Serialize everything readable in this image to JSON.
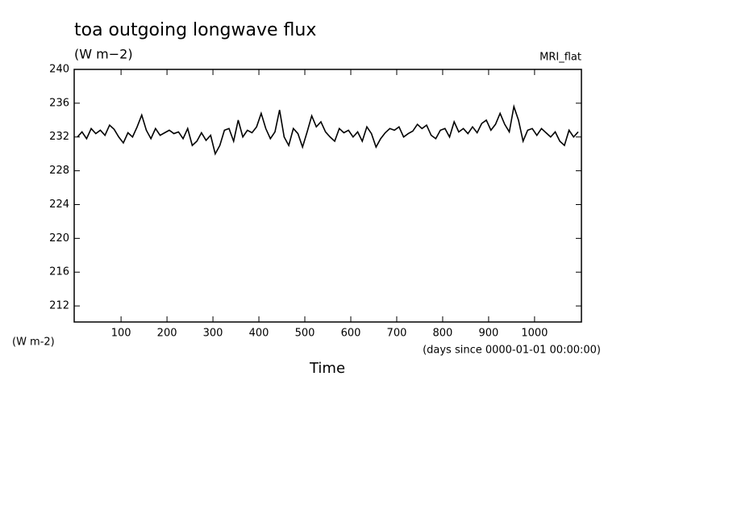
{
  "chart_data": {
    "type": "line",
    "title": "toa outgoing longwave flux",
    "subtitle": "(W m−2)",
    "annotation": "MRI_flat",
    "y_units_label": "(W m-2)",
    "x_units_label": "(days since 0000-01-01 00:00:00)",
    "x_label": "Time",
    "xlim": [
      -2,
      1102
    ],
    "ylim": [
      210.1,
      240
    ],
    "xticks": [
      100,
      200,
      300,
      400,
      500,
      600,
      700,
      800,
      900,
      1000
    ],
    "yticks": [
      212,
      216,
      220,
      224,
      228,
      232,
      236,
      240
    ],
    "x": [
      5,
      15,
      25,
      35,
      45,
      55,
      65,
      75,
      85,
      95,
      105,
      115,
      125,
      135,
      145,
      155,
      165,
      175,
      185,
      195,
      205,
      215,
      225,
      235,
      245,
      255,
      265,
      275,
      285,
      295,
      305,
      315,
      325,
      335,
      345,
      355,
      365,
      375,
      385,
      395,
      405,
      415,
      425,
      435,
      445,
      455,
      465,
      475,
      485,
      495,
      505,
      515,
      525,
      535,
      545,
      555,
      565,
      575,
      585,
      595,
      605,
      615,
      625,
      635,
      645,
      655,
      665,
      675,
      685,
      695,
      705,
      715,
      725,
      735,
      745,
      755,
      765,
      775,
      785,
      795,
      805,
      815,
      825,
      835,
      845,
      855,
      865,
      875,
      885,
      895,
      905,
      915,
      925,
      935,
      945,
      955,
      965,
      975,
      985,
      995,
      1005,
      1015,
      1025,
      1035,
      1045,
      1055,
      1065,
      1075,
      1085,
      1095
    ],
    "series": [
      {
        "color": "#000000",
        "values": [
          232.0,
          232.6,
          231.8,
          233.0,
          232.4,
          232.8,
          232.2,
          233.4,
          232.9,
          232.0,
          231.3,
          232.5,
          232.0,
          233.2,
          234.6,
          232.8,
          231.8,
          233.0,
          232.2,
          232.5,
          232.8,
          232.4,
          232.6,
          231.8,
          233.0,
          231.0,
          231.5,
          232.5,
          231.6,
          232.2,
          230.0,
          231.0,
          232.8,
          233.0,
          231.5,
          234.0,
          232.0,
          232.8,
          232.5,
          233.2,
          234.8,
          233.0,
          231.8,
          232.6,
          235.2,
          232.0,
          231.0,
          233.0,
          232.4,
          230.8,
          232.6,
          234.5,
          233.2,
          233.8,
          232.6,
          232.0,
          231.5,
          233.0,
          232.5,
          232.8,
          232.0,
          232.6,
          231.5,
          233.2,
          232.4,
          230.8,
          231.8,
          232.5,
          233.0,
          232.8,
          233.2,
          232.0,
          232.4,
          232.7,
          233.5,
          233.0,
          233.4,
          232.2,
          231.8,
          232.8,
          233.0,
          232.0,
          233.8,
          232.6,
          233.0,
          232.4,
          233.2,
          232.5,
          233.6,
          234.0,
          232.8,
          233.5,
          234.8,
          233.5,
          232.6,
          235.6,
          234.0,
          231.5,
          232.8,
          233.0,
          232.2,
          233.0,
          232.5,
          232.0,
          232.6,
          231.5,
          231.0,
          232.8,
          232.0,
          232.6
        ]
      }
    ]
  }
}
